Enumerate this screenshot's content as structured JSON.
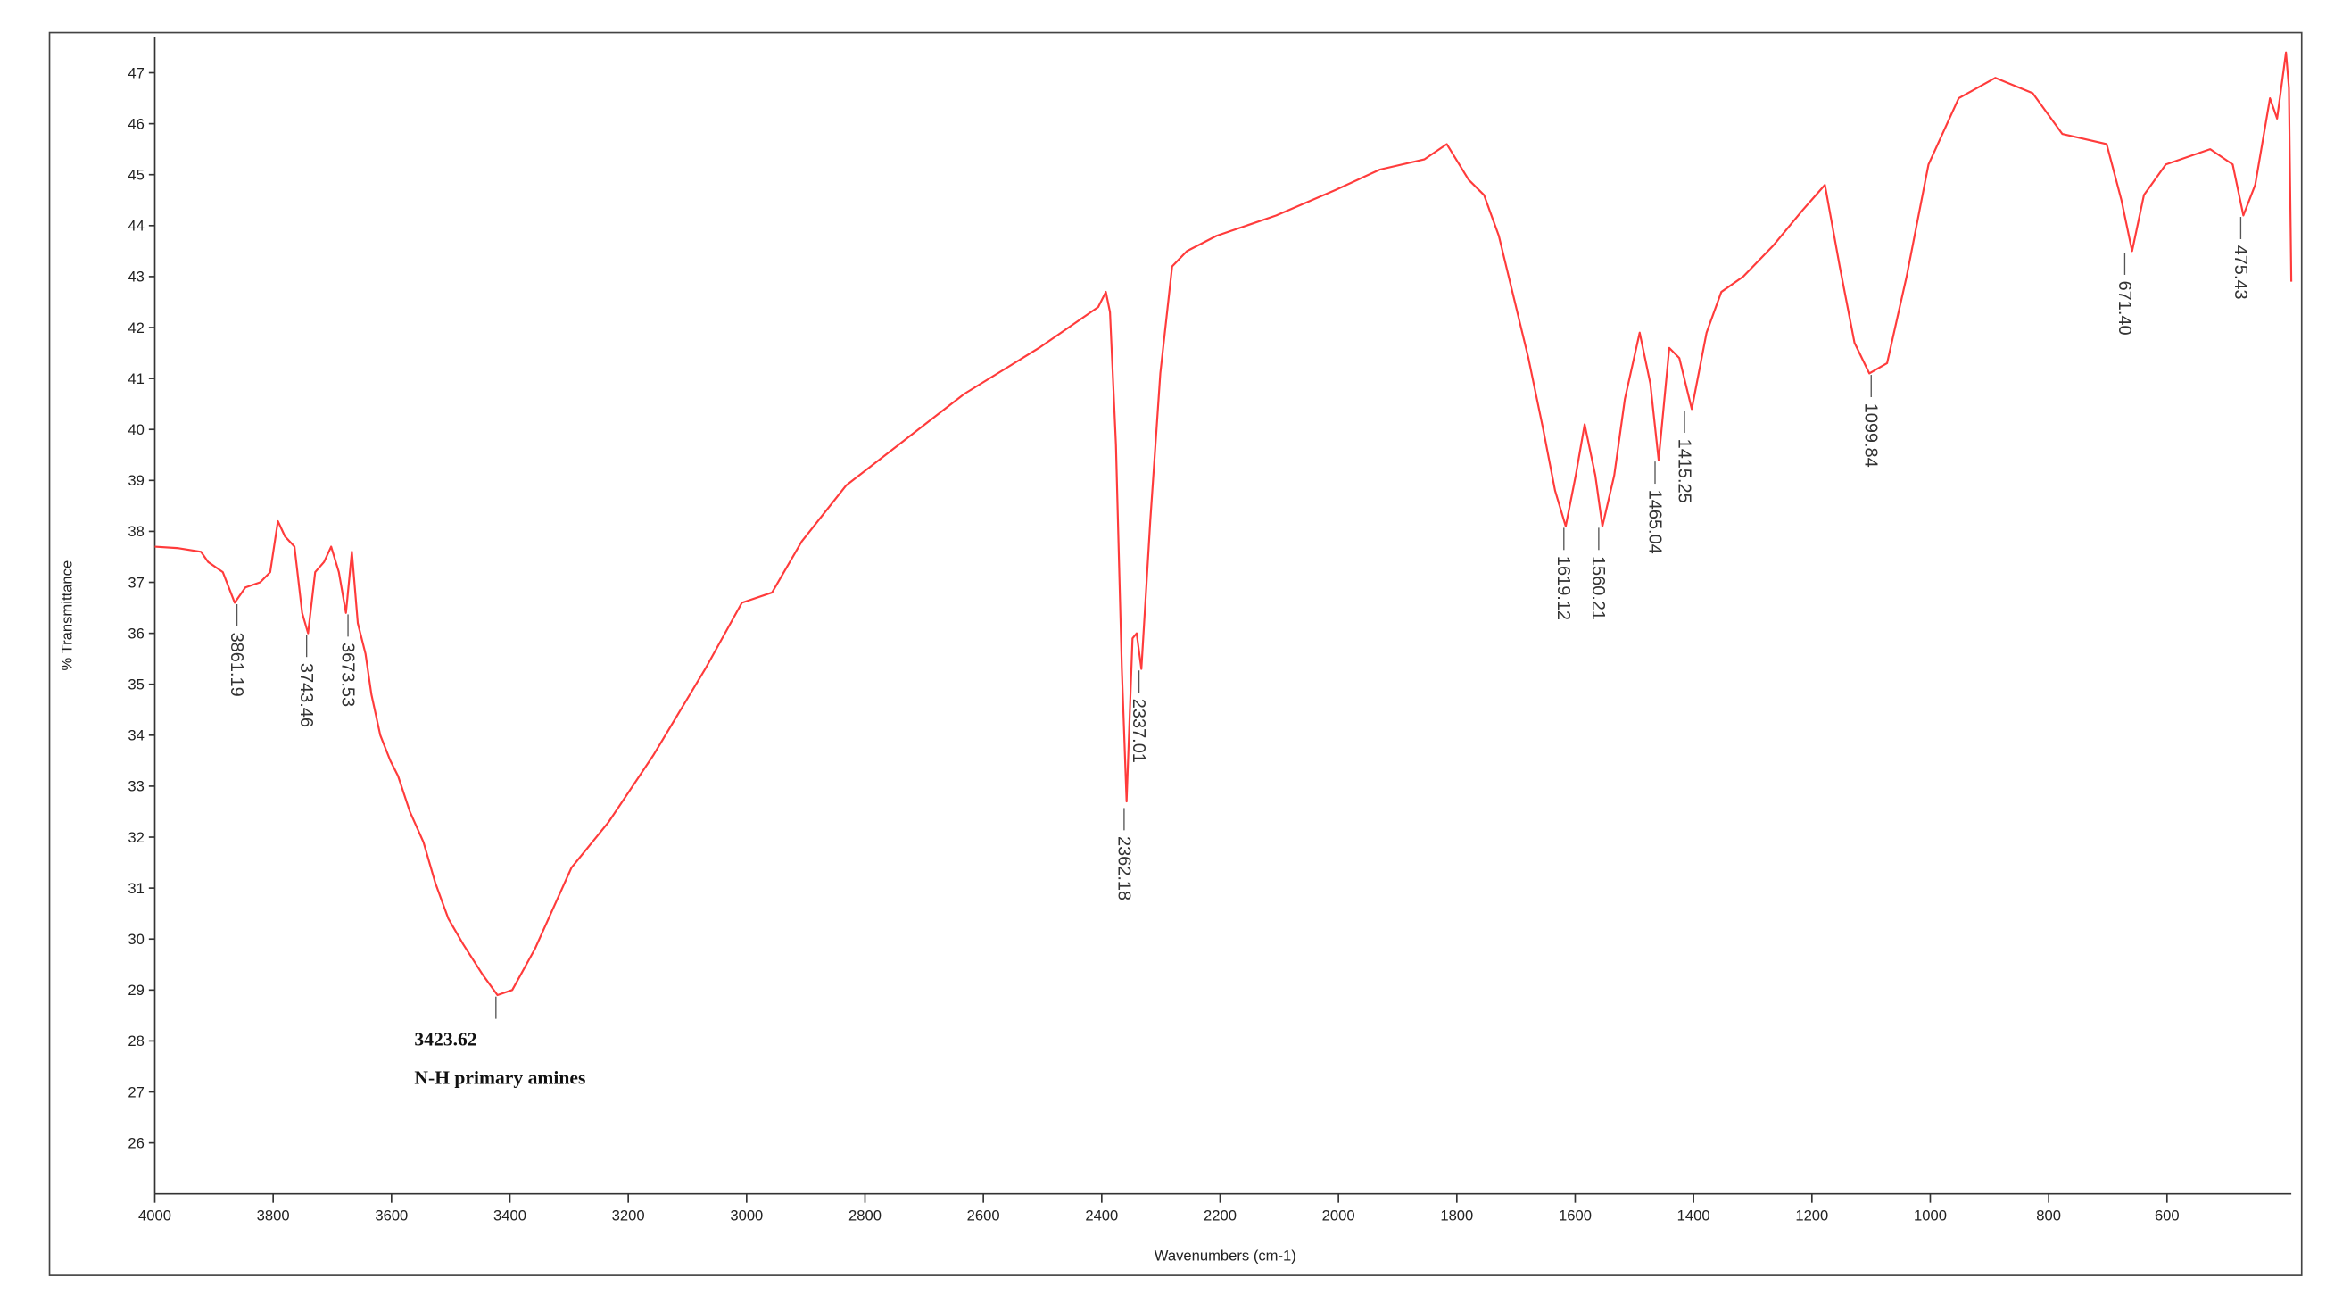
{
  "chart_data": {
    "type": "line",
    "x_label": "Wavenumbers (cm-1)",
    "y_label": "% Transmittance",
    "xlim": [
      4000,
      390
    ],
    "ylim": [
      25,
      47.7
    ],
    "xticks": [
      4000,
      3800,
      3600,
      3400,
      3200,
      3000,
      2800,
      2600,
      2400,
      2200,
      2000,
      1800,
      1600,
      1400,
      1200,
      1000,
      800,
      600
    ],
    "yticks": [
      26,
      27,
      28,
      29,
      30,
      31,
      32,
      33,
      34,
      35,
      36,
      37,
      38,
      39,
      40,
      41,
      42,
      43,
      44,
      45,
      46,
      47
    ],
    "series": [
      {
        "color": "#ff3b3b",
        "x": [
          4000,
          3960,
          3922,
          3910,
          3885,
          3865,
          3847,
          3822,
          3805,
          3792,
          3780,
          3764,
          3751,
          3741,
          3729,
          3714,
          3702,
          3689,
          3677,
          3667,
          3657,
          3644,
          3634,
          3619,
          3602,
          3589,
          3569,
          3546,
          3526,
          3504,
          3479,
          3446,
          3421,
          3396,
          3358,
          3296,
          3233,
          3158,
          3070,
          3008,
          2957,
          2907,
          2832,
          2732,
          2632,
          2506,
          2406,
          2393,
          2386,
          2376,
          2366,
          2358,
          2348,
          2341,
          2333,
          2318,
          2301,
          2281,
          2256,
          2206,
          2105,
          2005,
          1930,
          1855,
          1817,
          1780,
          1754,
          1729,
          1704,
          1679,
          1654,
          1634,
          1616,
          1599,
          1584,
          1566,
          1554,
          1534,
          1516,
          1491,
          1473,
          1459,
          1441,
          1424,
          1403,
          1378,
          1353,
          1316,
          1266,
          1216,
          1178,
          1153,
          1128,
          1103,
          1073,
          1040,
          1003,
          952,
          890,
          827,
          777,
          702,
          677,
          659,
          639,
          602,
          527,
          489,
          471,
          451,
          426,
          414,
          399,
          394,
          390
        ],
        "values": [
          37.7,
          37.67,
          37.6,
          37.4,
          37.2,
          36.6,
          36.9,
          37.0,
          37.2,
          38.2,
          37.9,
          37.7,
          36.4,
          36.0,
          37.2,
          37.4,
          37.7,
          37.2,
          36.4,
          37.6,
          36.2,
          35.6,
          34.8,
          34.0,
          33.5,
          33.2,
          32.5,
          31.9,
          31.1,
          30.4,
          29.9,
          29.3,
          28.9,
          29.0,
          29.8,
          31.4,
          32.3,
          33.6,
          35.3,
          36.6,
          36.8,
          37.8,
          38.9,
          39.8,
          40.7,
          41.6,
          42.4,
          42.7,
          42.3,
          39.7,
          35.3,
          32.7,
          35.9,
          36.0,
          35.3,
          38.2,
          41.1,
          43.2,
          43.5,
          43.8,
          44.2,
          44.7,
          45.1,
          45.3,
          45.6,
          44.9,
          44.6,
          43.8,
          42.6,
          41.4,
          40.0,
          38.8,
          38.1,
          39.1,
          40.1,
          39.1,
          38.1,
          39.1,
          40.6,
          41.9,
          40.9,
          39.4,
          41.6,
          41.4,
          40.4,
          41.9,
          42.7,
          43.0,
          43.6,
          44.3,
          44.8,
          43.2,
          41.7,
          41.1,
          41.3,
          43.0,
          45.2,
          46.5,
          46.9,
          46.6,
          45.8,
          45.6,
          44.5,
          43.5,
          44.6,
          45.2,
          45.5,
          45.2,
          44.2,
          44.8,
          46.5,
          46.1,
          47.4,
          46.7,
          42.9
        ]
      }
    ],
    "peaks": {
      "x": [
        3861.19,
        3743.46,
        3673.53,
        3423.62,
        2362.18,
        2337.01,
        1619.12,
        1560.21,
        1465.04,
        1415.25,
        1099.84,
        671.4,
        475.43
      ],
      "y": [
        36.6,
        36.0,
        36.4,
        28.9,
        32.6,
        35.3,
        38.1,
        38.1,
        39.4,
        40.4,
        41.1,
        43.5,
        44.2
      ],
      "value_labels": [
        "3861.19",
        "3743.46",
        "3673.53",
        "3423.62",
        "2362.18",
        "2337.01",
        "1619.12",
        "1560.21",
        "1465.04",
        "1415.25",
        "1099.84",
        "671.40",
        "475.43"
      ]
    },
    "annotation": "N-H primary amines"
  }
}
